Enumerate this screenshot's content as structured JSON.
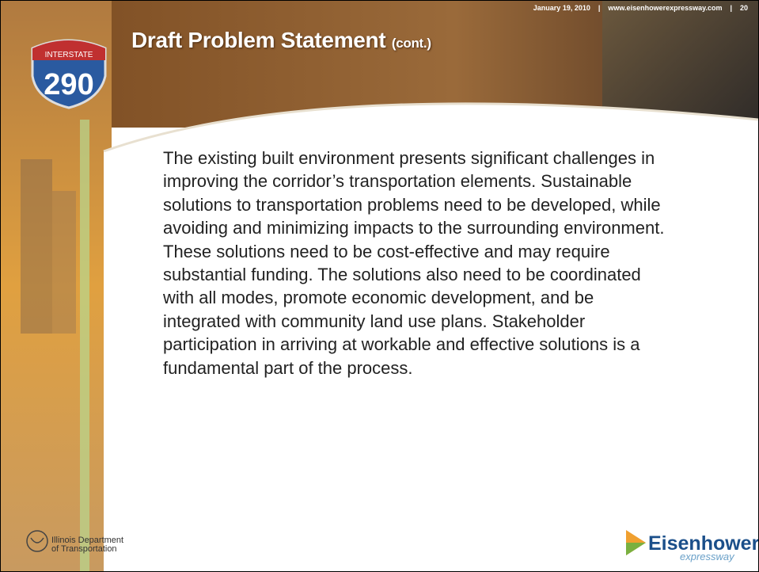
{
  "header": {
    "date": "January 19, 2010",
    "separator": "|",
    "website": "www.eisenhowerexpressway.com",
    "page": "20"
  },
  "title": {
    "main": "Draft Problem Statement",
    "suffix": "(cont.)"
  },
  "shield": {
    "top": "INTERSTATE",
    "number": "290"
  },
  "body": {
    "lines": [
      "The existing built environment presents significant challenges in",
      "improving the corridor’s transportation elements.  Sustainable",
      "solutions to transportation problems need to be developed, while",
      "avoiding and minimizing impacts to the surrounding environment.",
      "These solutions need to be cost-effective and may require",
      "substantial funding.  The solutions also need to be coordinated",
      "with all modes, promote economic development, and be",
      "integrated with community land use plans.  Stakeholder",
      "participation in arriving at workable and effective solutions is a",
      "fundamental part of the process."
    ]
  },
  "footer": {
    "idot_line1": "Illinois Department",
    "idot_line2": "of Transportation",
    "logo_main": "Eisenhower",
    "logo_sub": "expressway"
  }
}
